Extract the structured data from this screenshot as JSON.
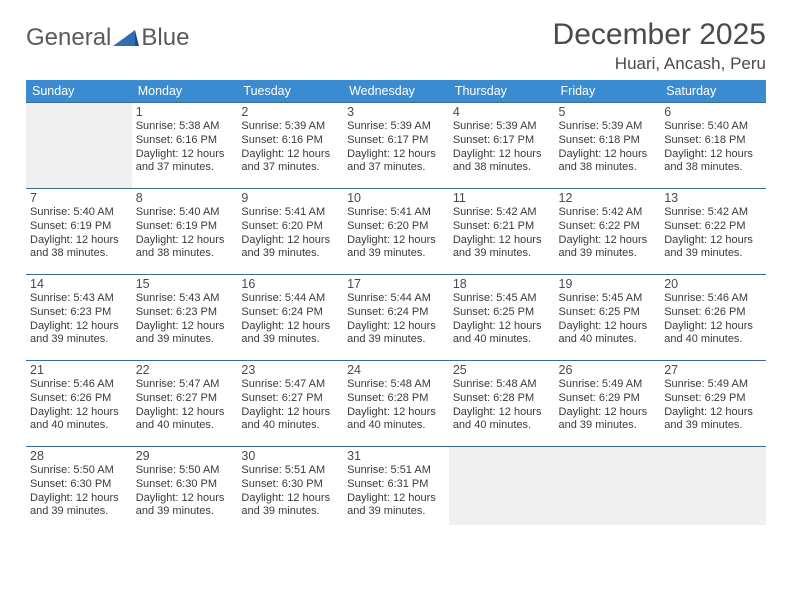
{
  "logo": {
    "text1": "General",
    "text2": "Blue"
  },
  "title": "December 2025",
  "location": "Huari, Ancash, Peru",
  "colors": {
    "header_bg": "#3a8bd0",
    "header_text": "#ffffff",
    "cell_border": "#3a6a9a",
    "text": "#3a3a3a",
    "logo_blue": "#2f6fb0"
  },
  "weekdays": [
    "Sunday",
    "Monday",
    "Tuesday",
    "Wednesday",
    "Thursday",
    "Friday",
    "Saturday"
  ],
  "weeks": [
    [
      {
        "n": "",
        "empty": true
      },
      {
        "n": "1",
        "sr": "5:38 AM",
        "ss": "6:16 PM",
        "dl": "12 hours and 37 minutes."
      },
      {
        "n": "2",
        "sr": "5:39 AM",
        "ss": "6:16 PM",
        "dl": "12 hours and 37 minutes."
      },
      {
        "n": "3",
        "sr": "5:39 AM",
        "ss": "6:17 PM",
        "dl": "12 hours and 37 minutes."
      },
      {
        "n": "4",
        "sr": "5:39 AM",
        "ss": "6:17 PM",
        "dl": "12 hours and 38 minutes."
      },
      {
        "n": "5",
        "sr": "5:39 AM",
        "ss": "6:18 PM",
        "dl": "12 hours and 38 minutes."
      },
      {
        "n": "6",
        "sr": "5:40 AM",
        "ss": "6:18 PM",
        "dl": "12 hours and 38 minutes."
      }
    ],
    [
      {
        "n": "7",
        "sr": "5:40 AM",
        "ss": "6:19 PM",
        "dl": "12 hours and 38 minutes."
      },
      {
        "n": "8",
        "sr": "5:40 AM",
        "ss": "6:19 PM",
        "dl": "12 hours and 38 minutes."
      },
      {
        "n": "9",
        "sr": "5:41 AM",
        "ss": "6:20 PM",
        "dl": "12 hours and 39 minutes."
      },
      {
        "n": "10",
        "sr": "5:41 AM",
        "ss": "6:20 PM",
        "dl": "12 hours and 39 minutes."
      },
      {
        "n": "11",
        "sr": "5:42 AM",
        "ss": "6:21 PM",
        "dl": "12 hours and 39 minutes."
      },
      {
        "n": "12",
        "sr": "5:42 AM",
        "ss": "6:22 PM",
        "dl": "12 hours and 39 minutes."
      },
      {
        "n": "13",
        "sr": "5:42 AM",
        "ss": "6:22 PM",
        "dl": "12 hours and 39 minutes."
      }
    ],
    [
      {
        "n": "14",
        "sr": "5:43 AM",
        "ss": "6:23 PM",
        "dl": "12 hours and 39 minutes."
      },
      {
        "n": "15",
        "sr": "5:43 AM",
        "ss": "6:23 PM",
        "dl": "12 hours and 39 minutes."
      },
      {
        "n": "16",
        "sr": "5:44 AM",
        "ss": "6:24 PM",
        "dl": "12 hours and 39 minutes."
      },
      {
        "n": "17",
        "sr": "5:44 AM",
        "ss": "6:24 PM",
        "dl": "12 hours and 39 minutes."
      },
      {
        "n": "18",
        "sr": "5:45 AM",
        "ss": "6:25 PM",
        "dl": "12 hours and 40 minutes."
      },
      {
        "n": "19",
        "sr": "5:45 AM",
        "ss": "6:25 PM",
        "dl": "12 hours and 40 minutes."
      },
      {
        "n": "20",
        "sr": "5:46 AM",
        "ss": "6:26 PM",
        "dl": "12 hours and 40 minutes."
      }
    ],
    [
      {
        "n": "21",
        "sr": "5:46 AM",
        "ss": "6:26 PM",
        "dl": "12 hours and 40 minutes."
      },
      {
        "n": "22",
        "sr": "5:47 AM",
        "ss": "6:27 PM",
        "dl": "12 hours and 40 minutes."
      },
      {
        "n": "23",
        "sr": "5:47 AM",
        "ss": "6:27 PM",
        "dl": "12 hours and 40 minutes."
      },
      {
        "n": "24",
        "sr": "5:48 AM",
        "ss": "6:28 PM",
        "dl": "12 hours and 40 minutes."
      },
      {
        "n": "25",
        "sr": "5:48 AM",
        "ss": "6:28 PM",
        "dl": "12 hours and 40 minutes."
      },
      {
        "n": "26",
        "sr": "5:49 AM",
        "ss": "6:29 PM",
        "dl": "12 hours and 39 minutes."
      },
      {
        "n": "27",
        "sr": "5:49 AM",
        "ss": "6:29 PM",
        "dl": "12 hours and 39 minutes."
      }
    ],
    [
      {
        "n": "28",
        "sr": "5:50 AM",
        "ss": "6:30 PM",
        "dl": "12 hours and 39 minutes."
      },
      {
        "n": "29",
        "sr": "5:50 AM",
        "ss": "6:30 PM",
        "dl": "12 hours and 39 minutes."
      },
      {
        "n": "30",
        "sr": "5:51 AM",
        "ss": "6:30 PM",
        "dl": "12 hours and 39 minutes."
      },
      {
        "n": "31",
        "sr": "5:51 AM",
        "ss": "6:31 PM",
        "dl": "12 hours and 39 minutes."
      },
      {
        "n": "",
        "empty": true
      },
      {
        "n": "",
        "empty": true
      },
      {
        "n": "",
        "empty": true
      }
    ]
  ],
  "labels": {
    "sunrise": "Sunrise: ",
    "sunset": "Sunset: ",
    "daylight": "Daylight: "
  }
}
